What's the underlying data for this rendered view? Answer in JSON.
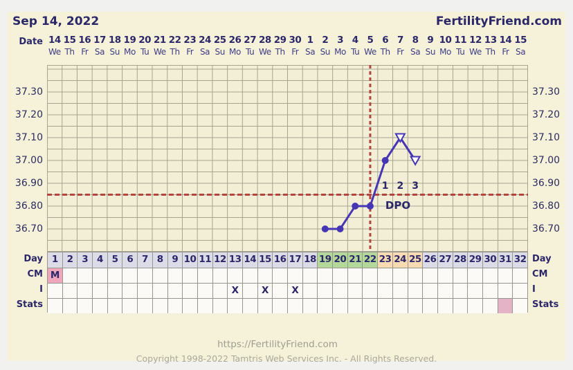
{
  "header": {
    "date_title": "Sep 14, 2022",
    "site": "FertilityFriend.com"
  },
  "axis": {
    "date_label": "Date",
    "dates": [
      "14",
      "15",
      "16",
      "17",
      "18",
      "19",
      "20",
      "21",
      "22",
      "23",
      "24",
      "25",
      "26",
      "27",
      "28",
      "29",
      "30",
      "1",
      "2",
      "3",
      "4",
      "5",
      "6",
      "7",
      "8",
      "9",
      "10",
      "11",
      "12",
      "13",
      "14",
      "15"
    ],
    "weekdays": [
      "We",
      "Th",
      "Fr",
      "Sa",
      "Su",
      "Mo",
      "Tu",
      "We",
      "Th",
      "Fr",
      "Sa",
      "Su",
      "Mo",
      "Tu",
      "We",
      "Th",
      "Fr",
      "Sa",
      "Su",
      "Mo",
      "Tu",
      "We",
      "Th",
      "Fr",
      "Sa",
      "Su",
      "Mo",
      "Tu",
      "We",
      "Th",
      "Fr",
      "Sa"
    ],
    "temp_labels": [
      "37.30",
      "37.20",
      "37.10",
      "37.00",
      "36.90",
      "36.80",
      "36.70"
    ]
  },
  "chart_data": {
    "type": "line",
    "title": "Basal body temperature chart",
    "x_days": [
      19,
      20,
      21,
      22,
      23,
      24,
      25
    ],
    "series": [
      {
        "name": "bbt_celsius",
        "values": [
          36.7,
          36.7,
          36.8,
          36.8,
          37.0,
          37.1,
          37.0
        ],
        "point_styles": [
          "dot",
          "dot",
          "dot",
          "dot",
          "dot",
          "open-triangle",
          "open-triangle"
        ]
      }
    ],
    "days_total": 32,
    "ylim": [
      36.6,
      37.4
    ],
    "ytick_step": 0.05,
    "ytick_labels": [
      "37.30",
      "37.20",
      "37.10",
      "37.00",
      "36.90",
      "36.80",
      "36.70"
    ],
    "coverline_temp": 36.85,
    "ovulation_day": 22,
    "dpo_markers": [
      {
        "day": 23,
        "label": "1"
      },
      {
        "day": 24,
        "label": "2"
      },
      {
        "day": 25,
        "label": "3"
      }
    ],
    "dpo_label": "DPO",
    "grid_on": true,
    "legend": "none"
  },
  "table": {
    "rows": [
      {
        "label": "Day",
        "cells": {
          "1": "1",
          "2": "2",
          "3": "3",
          "4": "4",
          "5": "5",
          "6": "6",
          "7": "7",
          "8": "8",
          "9": "9",
          "10": "10",
          "11": "11",
          "12": "12",
          "13": "13",
          "14": "14",
          "15": "15",
          "16": "16",
          "17": "17",
          "18": "18",
          "19": "19",
          "20": "20",
          "21": "21",
          "22": "22",
          "23": "23",
          "24": "24",
          "25": "25",
          "26": "26",
          "27": "27",
          "28": "28",
          "29": "29",
          "30": "30",
          "31": "31",
          "32": "32"
        }
      },
      {
        "label": "CM",
        "cells": {
          "1": "M"
        }
      },
      {
        "label": "I",
        "cells": {
          "13": "X",
          "15": "X",
          "17": "X"
        }
      },
      {
        "label": "Stats",
        "cells": {}
      }
    ],
    "day_highlight_green": [
      19,
      20,
      21,
      22
    ],
    "day_highlight_peach": [
      23,
      24,
      25
    ],
    "cm_highlight_pink": [
      1
    ],
    "stats_highlight_pink": [
      31
    ]
  },
  "footer": {
    "url": "https://FertilityFriend.com",
    "copyright": "Copyright 1998-2022 Tamtris Web Services Inc. - All Rights Reserved."
  },
  "colors": {
    "panel_bg": "#f6f2d9",
    "outer_bg": "#f1f1ef",
    "grid_line": "#a5a491",
    "chart_bg": "#f3efd6",
    "navy_text": "#2b2769",
    "temp_line": "#4636b3",
    "marker_open_fill": "#ffffff",
    "red_dashed": "#b5443f",
    "day_cell_default": "#dcdbe8",
    "day_cell_green": "#b4d79a",
    "day_cell_peach": "#f8dbb2",
    "cm_pink": "#f0a6bc",
    "stats_pink": "#e4b3c6",
    "footer_grey": "#9e9d90"
  }
}
